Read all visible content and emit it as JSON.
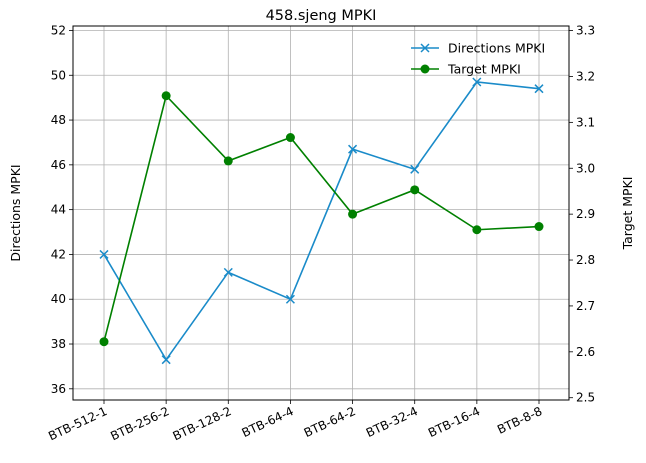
{
  "chart_data": {
    "type": "line",
    "title": "458.sjeng MPKI",
    "categories": [
      "BTB-512-1",
      "BTB-256-2",
      "BTB-128-2",
      "BTB-64-4",
      "BTB-64-2",
      "BTB-32-4",
      "BTB-16-4",
      "BTB-8-8"
    ],
    "ylabel_left": "Directions MPKI",
    "ylabel_right": "Target MPKI",
    "ylim_left": [
      35.5,
      52.2
    ],
    "ylim_right": [
      2.495,
      3.31
    ],
    "yticks_left": [
      36,
      38,
      40,
      42,
      44,
      46,
      48,
      50,
      52
    ],
    "yticks_right": [
      2.5,
      2.6,
      2.7,
      2.8,
      2.9,
      3.0,
      3.1,
      3.2,
      3.3
    ],
    "grid": true,
    "legend_position": "top-right",
    "series": [
      {
        "name": "Directions MPKI",
        "axis": "left",
        "color": "#1a8bc9",
        "marker": "x",
        "values": [
          42.0,
          37.3,
          41.2,
          40.0,
          46.7,
          45.8,
          49.7,
          49.4
        ]
      },
      {
        "name": "Target MPKI",
        "axis": "right",
        "color": "#008000",
        "marker": "o",
        "values": [
          2.622,
          3.158,
          3.016,
          3.067,
          2.9,
          2.953,
          2.866,
          2.873
        ]
      }
    ]
  }
}
